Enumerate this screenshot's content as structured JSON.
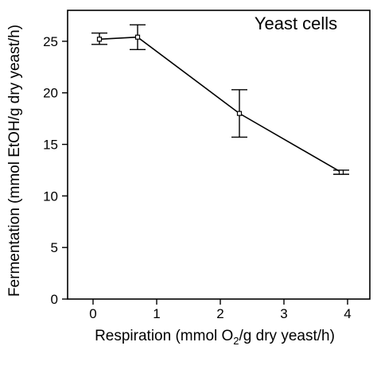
{
  "chart_data": {
    "type": "line",
    "title": "",
    "annotation": "Yeast cells",
    "xlabel_pre": "Respiration (mmol O",
    "xlabel_sub": "2",
    "xlabel_post": "/g dry yeast/h)",
    "ylabel": "Fermentation (mmol EtOH/g dry yeast/h)",
    "xlim": [
      -0.4,
      4.35
    ],
    "ylim": [
      0,
      28
    ],
    "xticks": [
      0,
      1,
      2,
      3,
      4
    ],
    "yticks": [
      0,
      5,
      10,
      15,
      20,
      25
    ],
    "grid": false,
    "series": [
      {
        "x": [
          0.1,
          0.7,
          2.3,
          3.9
        ],
        "y": [
          25.2,
          25.4,
          18.0,
          12.3
        ],
        "err_low": [
          24.7,
          24.2,
          15.7,
          12.1
        ],
        "err_high": [
          25.8,
          26.6,
          20.3,
          12.5
        ]
      }
    ],
    "colors": {
      "line": "#000000",
      "marker_fill": "#ffffff"
    }
  }
}
